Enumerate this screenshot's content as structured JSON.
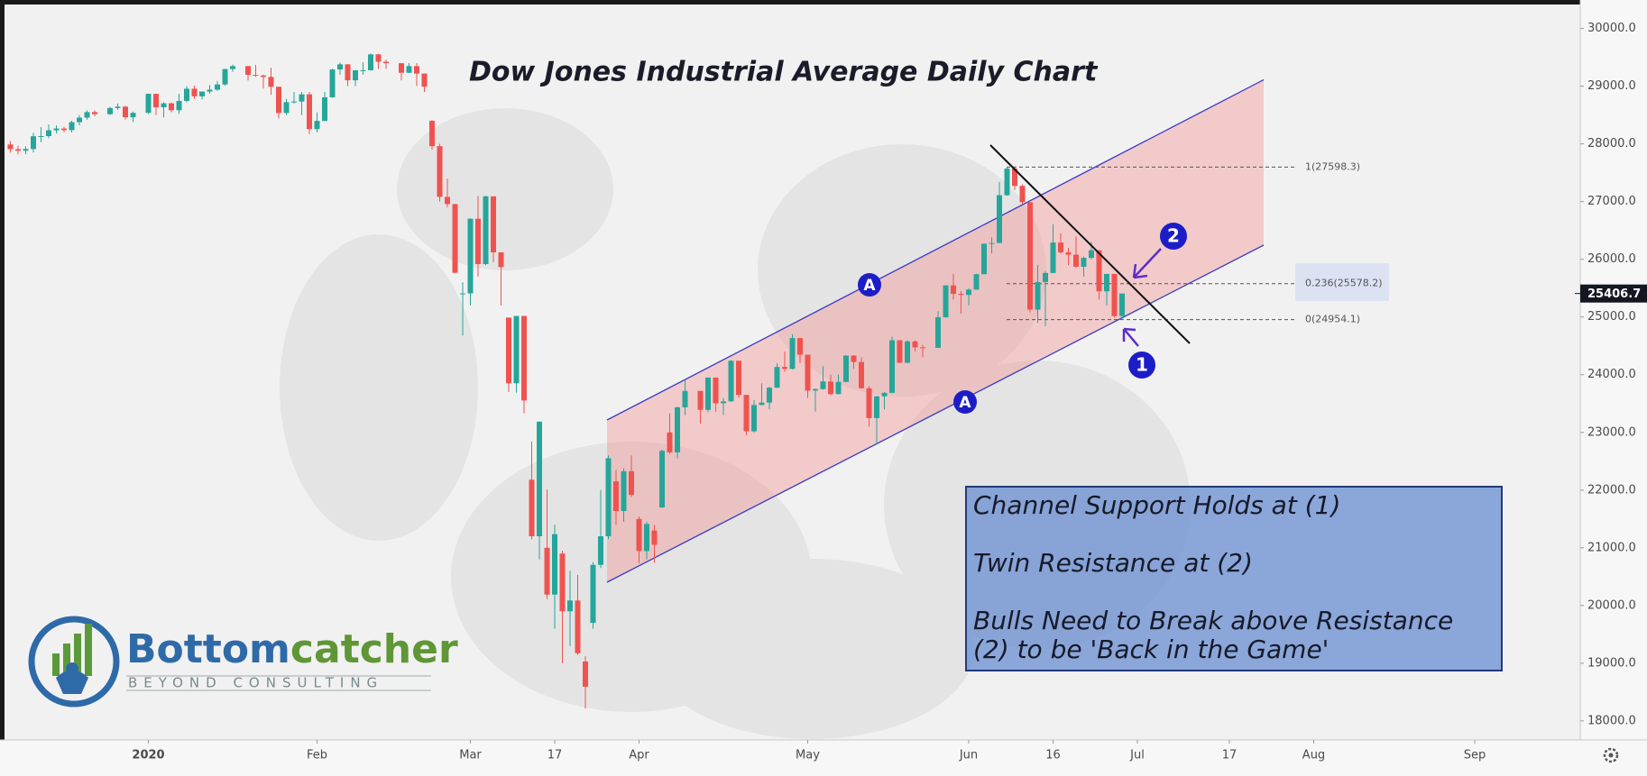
{
  "chart_data": {
    "type": "candlestick",
    "title": "Dow Jones Industrial Average Daily Chart",
    "x": [
      "2019-12-09",
      "2019-12-10",
      "2019-12-11",
      "2019-12-12",
      "2019-12-13",
      "2019-12-16",
      "2019-12-17",
      "2019-12-18",
      "2019-12-19",
      "2019-12-20",
      "2019-12-23",
      "2019-12-24",
      "2019-12-26",
      "2019-12-27",
      "2019-12-30",
      "2019-12-31",
      "2020-01-02",
      "2020-01-03",
      "2020-01-06",
      "2020-01-07",
      "2020-01-08",
      "2020-01-09",
      "2020-01-10",
      "2020-01-13",
      "2020-01-14",
      "2020-01-15",
      "2020-01-16",
      "2020-01-17",
      "2020-01-21",
      "2020-01-22",
      "2020-01-23",
      "2020-01-24",
      "2020-01-27",
      "2020-01-28",
      "2020-01-29",
      "2020-01-30",
      "2020-01-31",
      "2020-02-03",
      "2020-02-04",
      "2020-02-05",
      "2020-02-06",
      "2020-02-07",
      "2020-02-10",
      "2020-02-11",
      "2020-02-12",
      "2020-02-13",
      "2020-02-14",
      "2020-02-18",
      "2020-02-19",
      "2020-02-20",
      "2020-02-21",
      "2020-02-24",
      "2020-02-25",
      "2020-02-26",
      "2020-02-27",
      "2020-02-28",
      "2020-03-02",
      "2020-03-03",
      "2020-03-04",
      "2020-03-05",
      "2020-03-06",
      "2020-03-09",
      "2020-03-10",
      "2020-03-11",
      "2020-03-12",
      "2020-03-13",
      "2020-03-16",
      "2020-03-17",
      "2020-03-18",
      "2020-03-19",
      "2020-03-20",
      "2020-03-23",
      "2020-03-24",
      "2020-03-25",
      "2020-03-26",
      "2020-03-27",
      "2020-03-30",
      "2020-03-31",
      "2020-04-01",
      "2020-04-02",
      "2020-04-03",
      "2020-04-06",
      "2020-04-07",
      "2020-04-08",
      "2020-04-09",
      "2020-04-13",
      "2020-04-14",
      "2020-04-15",
      "2020-04-16",
      "2020-04-17",
      "2020-04-20",
      "2020-04-21",
      "2020-04-22",
      "2020-04-23",
      "2020-04-24",
      "2020-04-27",
      "2020-04-28",
      "2020-04-29",
      "2020-04-30",
      "2020-05-01",
      "2020-05-04",
      "2020-05-05",
      "2020-05-06",
      "2020-05-07",
      "2020-05-08",
      "2020-05-11",
      "2020-05-12",
      "2020-05-13",
      "2020-05-14",
      "2020-05-15",
      "2020-05-18",
      "2020-05-19",
      "2020-05-20",
      "2020-05-21",
      "2020-05-22",
      "2020-05-26",
      "2020-05-27",
      "2020-05-28",
      "2020-05-29",
      "2020-06-01",
      "2020-06-02",
      "2020-06-03",
      "2020-06-04",
      "2020-06-05",
      "2020-06-08",
      "2020-06-09",
      "2020-06-10",
      "2020-06-11",
      "2020-06-12",
      "2020-06-15",
      "2020-06-16",
      "2020-06-17",
      "2020-06-18",
      "2020-06-19",
      "2020-06-22",
      "2020-06-23",
      "2020-06-24",
      "2020-06-25",
      "2020-06-26",
      "2020-06-29"
    ],
    "open": [
      27990,
      27909,
      27881,
      27911,
      28132,
      28135,
      28235,
      28267,
      28239,
      28377,
      28455,
      28551,
      28515,
      28621,
      28645,
      28462,
      28538,
      28868,
      28634,
      28703,
      28583,
      28745,
      28956,
      28824,
      28907,
      28940,
      29030,
      29297,
      29348,
      29196,
      29186,
      29160,
      28990,
      28535,
      28723,
      28734,
      28859,
      28256,
      28399,
      28807,
      29290,
      29379,
      29102,
      29276,
      29276,
      29551,
      29423,
      29398,
      29232,
      29348,
      29219,
      28400,
      27961,
      27081,
      26957,
      25400,
      25409,
      26703,
      25917,
      27091,
      26121,
      24990,
      23851,
      25018,
      22180,
      21200,
      21000,
      20189,
      20900,
      19899,
      20087,
      19030,
      19700,
      20704,
      21200,
      22150,
      21637,
      22327,
      21500,
      20944,
      21300,
      21700,
      23000,
      22654,
      23434,
      23719,
      23390,
      23950,
      23505,
      23538,
      24242,
      23650,
      23019,
      23475,
      23516,
      23775,
      24134,
      24101,
      24634,
      24346,
      23724,
      23750,
      23883,
      23664,
      23875,
      24331,
      24221,
      23765,
      23248,
      23625,
      23685,
      24597,
      24207,
      24576,
      24474,
      24465,
      24995,
      25548,
      25401,
      25383,
      25475,
      25742,
      26270,
      26282,
      27111,
      27572,
      27272,
      26990,
      25128,
      25606,
      25763,
      26290,
      26120,
      26080,
      25871,
      26025,
      26156,
      25445,
      25746,
      25016
    ],
    "high": [
      28050,
      27970,
      27960,
      28190,
      28290,
      28337,
      28320,
      28300,
      28400,
      28500,
      28580,
      28580,
      28640,
      28700,
      28660,
      28560,
      28872,
      28870,
      28720,
      28720,
      28870,
      29000,
      29010,
      28910,
      29020,
      29090,
      29300,
      29374,
      29350,
      29370,
      29200,
      29320,
      28990,
      28780,
      28900,
      28900,
      28900,
      28550,
      28900,
      29300,
      29410,
      29380,
      29280,
      29415,
      29568,
      29560,
      29460,
      29400,
      29400,
      29400,
      29220,
      28410,
      28000,
      27400,
      26960,
      25600,
      26710,
      27100,
      27100,
      27091,
      26121,
      24990,
      25020,
      25018,
      22840,
      23190,
      22010,
      21400,
      20950,
      20600,
      20530,
      19120,
      20750,
      22000,
      22600,
      22350,
      22380,
      22600,
      21540,
      21450,
      21400,
      22700,
      23330,
      23450,
      23900,
      23720,
      23950,
      23950,
      23600,
      24250,
      24242,
      23650,
      23560,
      23850,
      23790,
      24200,
      24400,
      24700,
      24640,
      24346,
      23760,
      24150,
      24000,
      24000,
      24340,
      24340,
      24300,
      23800,
      23630,
      23700,
      24660,
      24600,
      24600,
      24600,
      24520,
      25100,
      25550,
      25750,
      25450,
      25500,
      25750,
      26270,
      26380,
      27340,
      27598.3,
      27600,
      27300,
      26990,
      25900,
      25800,
      26610,
      26450,
      26200,
      26400,
      26050,
      26300,
      26160,
      25750,
      25750,
      25410
    ],
    "low": [
      27850,
      27820,
      27820,
      27850,
      28030,
      28100,
      28180,
      28200,
      28200,
      28320,
      28420,
      28480,
      28500,
      28590,
      28420,
      28380,
      28520,
      28500,
      28460,
      28550,
      28520,
      28720,
      28780,
      28770,
      28870,
      28920,
      29010,
      29250,
      29100,
      29160,
      28960,
      28850,
      28440,
      28500,
      28700,
      28500,
      28170,
      28200,
      28390,
      28800,
      29200,
      29000,
      29000,
      29200,
      29270,
      29300,
      29300,
      29100,
      29230,
      29000,
      28900,
      27900,
      27000,
      26900,
      25760,
      24680,
      25200,
      25700,
      25900,
      25950,
      25200,
      23700,
      23690,
      23330,
      21150,
      20800,
      20110,
      19600,
      19000,
      19300,
      19140,
      18214,
      19600,
      20650,
      21150,
      21400,
      21450,
      21880,
      20735,
      20800,
      20740,
      21690,
      22630,
      22550,
      23300,
      23150,
      23350,
      23360,
      23300,
      23530,
      23600,
      22950,
      23000,
      23470,
      23400,
      23770,
      24050,
      24090,
      24200,
      23600,
      23360,
      23740,
      23640,
      23660,
      23870,
      24100,
      23760,
      23100,
      22790,
      23400,
      23680,
      24200,
      24200,
      24400,
      24300,
      24460,
      24990,
      25300,
      25060,
      25200,
      25470,
      25740,
      26100,
      26280,
      27100,
      27200,
      26960,
      25080,
      24900,
      24840,
      25760,
      26100,
      25900,
      25850,
      25700,
      26000,
      25300,
      25200,
      24990,
      24960
    ],
    "close": [
      27909,
      27881,
      27911,
      28132,
      28135,
      28235,
      28267,
      28239,
      28377,
      28455,
      28551,
      28515,
      28621,
      28645,
      28462,
      28538,
      28868,
      28634,
      28703,
      28583,
      28745,
      28956,
      28824,
      28907,
      28940,
      29030,
      29297,
      29348,
      29196,
      29186,
      29160,
      28990,
      28535,
      28723,
      28734,
      28859,
      28256,
      28399,
      28807,
      29290,
      29379,
      29102,
      29276,
      29276,
      29551,
      29423,
      29398,
      29232,
      29348,
      29219,
      28992,
      27961,
      27081,
      26957,
      25766,
      25409,
      26703,
      25917,
      27091,
      26121,
      25865,
      23851,
      25018,
      23553,
      21200,
      23186,
      20189,
      21237,
      19899,
      20087,
      19174,
      18592,
      20704,
      21200,
      22552,
      21637,
      22327,
      21917,
      20944,
      21413,
      21053,
      22680,
      22654,
      23434,
      23719,
      23390,
      23950,
      23505,
      23538,
      24242,
      23650,
      23019,
      23475,
      23516,
      23775,
      24134,
      24101,
      24634,
      24346,
      23724,
      23750,
      23883,
      23664,
      23875,
      24331,
      24221,
      23765,
      23248,
      23625,
      23685,
      24597,
      24207,
      24576,
      24474,
      24465,
      24995,
      25548,
      25401,
      25383,
      25475,
      25742,
      26270,
      26282,
      27111,
      27572,
      27272,
      26990,
      25128,
      25606,
      25763,
      26290,
      26120,
      26080,
      25871,
      26025,
      26156,
      25445,
      25746,
      25016,
      25406.7
    ],
    "up_color": "#26a69a",
    "down_color": "#ef5350",
    "ylim": [
      17670,
      30400
    ],
    "yticks": [
      {
        "value": 18000,
        "label": "18000.0"
      },
      {
        "value": 19000,
        "label": "19000.0"
      },
      {
        "value": 20000,
        "label": "20000.0"
      },
      {
        "value": 21000,
        "label": "21000.0"
      },
      {
        "value": 22000,
        "label": "22000.0"
      },
      {
        "value": 23000,
        "label": "23000.0"
      },
      {
        "value": 24000,
        "label": "24000.0"
      },
      {
        "value": 25000,
        "label": "25000.0"
      },
      {
        "value": 26000,
        "label": "26000.0"
      },
      {
        "value": 27000,
        "label": "27000.0"
      },
      {
        "value": 28000,
        "label": "28000.0"
      },
      {
        "value": 29000,
        "label": "29000.0"
      },
      {
        "value": 30000,
        "label": "30000.0"
      }
    ],
    "xticks": [
      {
        "value": "2020-01-02",
        "label": "2020"
      },
      {
        "value": "2020-02-03",
        "label": "Feb"
      },
      {
        "value": "2020-03-02",
        "label": "Mar"
      },
      {
        "value": "2020-03-17",
        "label": "17"
      },
      {
        "value": "2020-04-01",
        "label": "Apr"
      },
      {
        "value": "2020-05-01",
        "label": "May"
      },
      {
        "value": "2020-06-01",
        "label": "Jun"
      },
      {
        "value": "2020-06-16",
        "label": "16"
      },
      {
        "value": "2020-07-01",
        "label": "Jul"
      },
      {
        "value": "2020-07-17",
        "label": "17"
      },
      {
        "value": "2020-08-03",
        "label": "Aug"
      },
      {
        "value": "2020-09-01",
        "label": "Sep"
      }
    ],
    "grid": false,
    "fib_levels": [
      {
        "value": 27598.3,
        "label": "1(27598.3)"
      },
      {
        "value": 25578.2,
        "label": "0.236(25578.2)"
      },
      {
        "value": 24954.1,
        "label": "0(24954.1)"
      }
    ],
    "markers": [
      "A",
      "A",
      "1",
      "2"
    ],
    "text_box": [
      "Channel Support Holds at (1)",
      "Twin Resistance at (2)",
      "Bulls Need to Break above Resistance",
      "(2) to be 'Back in the Game'"
    ]
  },
  "logo": {
    "name": [
      "Bottom",
      "catcher"
    ],
    "tagline": "BEYOND CONSULTING"
  }
}
